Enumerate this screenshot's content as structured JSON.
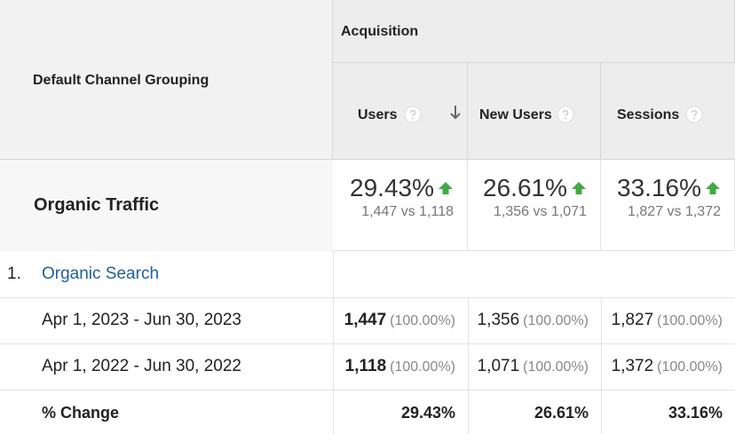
{
  "header": {
    "dimension": "Default Channel Grouping",
    "group": "Acquisition",
    "columns": [
      "Users",
      "New Users",
      "Sessions"
    ]
  },
  "summary": {
    "label": "Organic Traffic",
    "metrics": [
      {
        "change": "29.43%",
        "detail": "1,447 vs 1,118"
      },
      {
        "change": "26.61%",
        "detail": "1,356 vs 1,071"
      },
      {
        "change": "33.16%",
        "detail": "1,827 vs 1,372"
      }
    ]
  },
  "channel": {
    "index": "1.",
    "name": "Organic Search"
  },
  "rows": [
    {
      "label": "Apr 1, 2023 - Jun 30, 2023",
      "cells": [
        {
          "value": "1,447",
          "share": "(100.00%)"
        },
        {
          "value": "1,356",
          "share": "(100.00%)"
        },
        {
          "value": "1,827",
          "share": "(100.00%)"
        }
      ]
    },
    {
      "label": "Apr 1, 2022 - Jun 30, 2022",
      "cells": [
        {
          "value": "1,118",
          "share": "(100.00%)"
        },
        {
          "value": "1,071",
          "share": "(100.00%)"
        },
        {
          "value": "1,372",
          "share": "(100.00%)"
        }
      ]
    }
  ],
  "change": {
    "label": "% Change",
    "cells": [
      "29.43%",
      "26.61%",
      "33.16%"
    ]
  }
}
